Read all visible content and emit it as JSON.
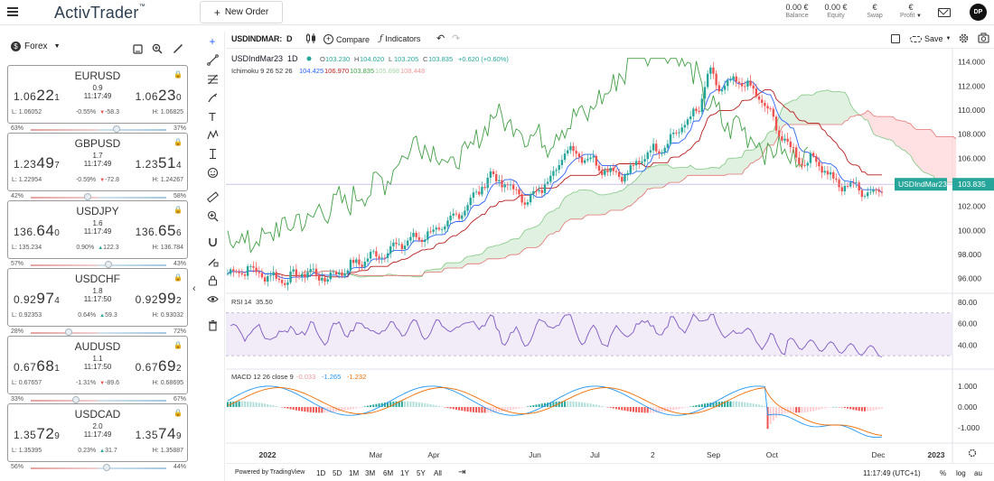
{
  "topbar": {
    "brand": "ActivTrader",
    "brand_mark": "™",
    "new_order_label": "New Order",
    "metrics": [
      {
        "value": "0.00 €",
        "label": "Balance"
      },
      {
        "value": "0.00 €",
        "label": "Equity"
      },
      {
        "value": "€",
        "label": "Swap"
      },
      {
        "value": "€",
        "label": "Profit"
      }
    ],
    "avatar_initials": "DP"
  },
  "panel": {
    "market_label": "Forex",
    "icons": [
      "layout-icon",
      "zoom-icon",
      "pencil-icon"
    ],
    "instruments": [
      {
        "pair": "EURUSD",
        "bid_a": "1.06",
        "bid_b": "22",
        "bid_c": "1",
        "spread": "0.9",
        "time": "11:17:49",
        "ask_a": "1.06",
        "ask_b": "23",
        "ask_c": "0",
        "low": "L: 1.06052",
        "pct": "-0.55%",
        "chg": "-58.3",
        "dir": "down",
        "high": "H: 1.06825",
        "sell": "63%",
        "buy": "37%",
        "knob": 0.63
      },
      {
        "pair": "GBPUSD",
        "bid_a": "1.23",
        "bid_b": "49",
        "bid_c": "7",
        "spread": "1.7",
        "time": "11:17:49",
        "ask_a": "1.23",
        "ask_b": "51",
        "ask_c": "4",
        "low": "L: 1.22954",
        "pct": "-0.59%",
        "chg": "-72.8",
        "dir": "down",
        "high": "H: 1.24267",
        "sell": "42%",
        "buy": "58%",
        "knob": 0.42
      },
      {
        "pair": "USDJPY",
        "bid_a": "136.",
        "bid_b": "64",
        "bid_c": "0",
        "spread": "1.6",
        "time": "11:17:49",
        "ask_a": "136.",
        "ask_b": "65",
        "ask_c": "6",
        "low": "L: 135.234",
        "pct": "0.90%",
        "chg": "122.3",
        "dir": "up",
        "high": "H: 136.784",
        "sell": "57%",
        "buy": "43%",
        "knob": 0.57
      },
      {
        "pair": "USDCHF",
        "bid_a": "0.92",
        "bid_b": "97",
        "bid_c": "4",
        "spread": "1.8",
        "time": "11:17:50",
        "ask_a": "0.92",
        "ask_b": "99",
        "ask_c": "2",
        "low": "L: 0.92353",
        "pct": "0.64%",
        "chg": "59.3",
        "dir": "up",
        "high": "H: 0.93032",
        "sell": "28%",
        "buy": "72%",
        "knob": 0.28
      },
      {
        "pair": "AUDUSD",
        "bid_a": "0.67",
        "bid_b": "68",
        "bid_c": "1",
        "spread": "1.1",
        "time": "11:17:50",
        "ask_a": "0.67",
        "ask_b": "69",
        "ask_c": "2",
        "low": "L: 0.67657",
        "pct": "-1.31%",
        "chg": "-89.6",
        "dir": "down",
        "high": "H: 0.68695",
        "sell": "33%",
        "buy": "67%",
        "knob": 0.33
      },
      {
        "pair": "USDCAD",
        "bid_a": "1.35",
        "bid_b": "72",
        "bid_c": "9",
        "spread": "2.0",
        "time": "11:17:49",
        "ask_a": "1.35",
        "ask_b": "74",
        "ask_c": "9",
        "low": "L: 1.35395",
        "pct": "0.23%",
        "chg": "31.7",
        "dir": "up",
        "high": "H: 1.35887",
        "sell": "56%",
        "buy": "44%",
        "knob": 0.56
      }
    ]
  },
  "chart_header": {
    "symbol_box": "USDINDMAR:",
    "interval": "D",
    "compare_label": "Compare",
    "indicators_label": "Indicators",
    "save_label": "Save"
  },
  "chart_data": {
    "type": "candlestick",
    "legend": {
      "symbol": "USDIndMar23",
      "interval": "1D",
      "ohlc": [
        {
          "k": "O",
          "v": "103.230"
        },
        {
          "k": "H",
          "v": "104.020"
        },
        {
          "k": "L",
          "v": "103.205"
        },
        {
          "k": "C",
          "v": "103.835"
        }
      ],
      "change": "+0.620 (+0.60%)",
      "ichimoku_label": "Ichimoku 9 26 52 26",
      "ichimoku_values": [
        {
          "v": "104.425",
          "color": "#2962ff"
        },
        {
          "v": "106.970",
          "color": "#b71c1c"
        },
        {
          "v": "103.835",
          "color": "#43a047"
        },
        {
          "v": "105.698",
          "color": "#a5d6a7"
        },
        {
          "v": "108.448",
          "color": "#ef9a9a"
        }
      ]
    },
    "price_axis": [
      "114.000",
      "112.000",
      "110.000",
      "108.000",
      "106.000",
      "104.000",
      "102.000",
      "100.000",
      "98.000",
      "96.000"
    ],
    "last_price": "103.835",
    "last_price_label": "USDIndMar23",
    "ylim": [
      95,
      114.5
    ],
    "rsi": {
      "label": "RSI",
      "params": "14",
      "value": "35.50",
      "axis": [
        "80.00",
        "60.00",
        "40.00"
      ],
      "band": [
        30,
        70
      ]
    },
    "macd": {
      "label": "MACD 12 26 close 9",
      "values": [
        {
          "v": "-0.033",
          "color": "#ef9a9a"
        },
        {
          "v": "-1.265",
          "color": "#2196f3"
        },
        {
          "v": "-1.232",
          "color": "#ef6c00"
        }
      ],
      "axis": [
        "1.000",
        "0.000",
        "-1.000"
      ]
    },
    "time_axis": [
      {
        "label": "2022",
        "bold": true,
        "t": 0.055
      },
      {
        "label": "Mar",
        "bold": false,
        "t": 0.205
      },
      {
        "label": "Apr",
        "bold": false,
        "t": 0.285
      },
      {
        "label": "Jun",
        "bold": false,
        "t": 0.425
      },
      {
        "label": "Jul",
        "bold": false,
        "t": 0.508
      },
      {
        "label": "2",
        "bold": false,
        "t": 0.588
      },
      {
        "label": "Sep",
        "bold": false,
        "t": 0.672
      },
      {
        "label": "Oct",
        "bold": false,
        "t": 0.753
      },
      {
        "label": "Dec",
        "bold": false,
        "t": 0.9
      },
      {
        "label": "2023",
        "bold": true,
        "t": 0.98
      }
    ],
    "series": [
      {
        "name": "USDIndMar23",
        "anchors": [
          [
            0,
            96.4
          ],
          [
            0.03,
            96.8
          ],
          [
            0.06,
            96.2
          ],
          [
            0.09,
            95.9
          ],
          [
            0.12,
            96.6
          ],
          [
            0.15,
            96.0
          ],
          [
            0.18,
            96.8
          ],
          [
            0.21,
            97.6
          ],
          [
            0.24,
            98.2
          ],
          [
            0.27,
            99.0
          ],
          [
            0.3,
            99.6
          ],
          [
            0.33,
            100.2
          ],
          [
            0.36,
            101.8
          ],
          [
            0.38,
            103.0
          ],
          [
            0.4,
            104.6
          ],
          [
            0.43,
            103.6
          ],
          [
            0.46,
            102.4
          ],
          [
            0.49,
            104.2
          ],
          [
            0.52,
            106.8
          ],
          [
            0.55,
            106.0
          ],
          [
            0.58,
            105.0
          ],
          [
            0.61,
            104.6
          ],
          [
            0.64,
            106.4
          ],
          [
            0.67,
            107.2
          ],
          [
            0.7,
            109.0
          ],
          [
            0.72,
            110.0
          ],
          [
            0.735,
            113.2
          ],
          [
            0.75,
            111.8
          ],
          [
            0.77,
            112.2
          ],
          [
            0.79,
            112.4
          ],
          [
            0.8,
            111.6
          ],
          [
            0.82,
            110.6
          ],
          [
            0.84,
            108.4
          ],
          [
            0.86,
            106.8
          ],
          [
            0.88,
            105.6
          ],
          [
            0.9,
            106.0
          ],
          [
            0.92,
            104.4
          ],
          [
            0.94,
            103.6
          ],
          [
            0.96,
            103.8
          ],
          [
            0.98,
            102.9
          ],
          [
            1.0,
            103.8
          ]
        ]
      }
    ]
  },
  "footer": {
    "powered": "Powered by TradingView",
    "ranges": [
      "1D",
      "5D",
      "1M",
      "3M",
      "6M",
      "1Y",
      "5Y",
      "All"
    ],
    "clock": "11:17:49 (UTC+1)",
    "pct": "%",
    "log": "log",
    "auto": "au"
  }
}
